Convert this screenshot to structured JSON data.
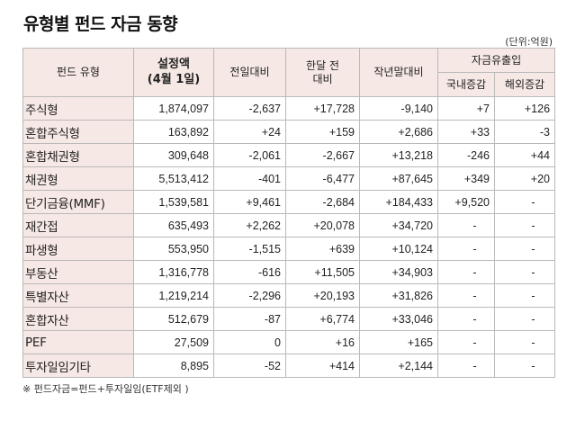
{
  "title": "유형별 펀드 자금 동향",
  "unit": "(단위:억원)",
  "headers": {
    "fund_type": "펀드 유형",
    "setup_amount_line1": "설정액",
    "setup_amount_line2": "(4월 1일)",
    "vs_prev_day": "전일대비",
    "vs_month_ago_line1": "한달 전",
    "vs_month_ago_line2": "대비",
    "vs_last_year_end": "작년말대비",
    "flow_group": "자금유출입",
    "domestic": "국내증감",
    "overseas": "해외증감"
  },
  "rows": [
    {
      "name": "주식형",
      "setup": "1,874,097",
      "prev_day": "-2,637",
      "month": "+17,728",
      "year_end": "-9,140",
      "domestic": "+7",
      "overseas": "+126"
    },
    {
      "name": "혼합주식형",
      "setup": "163,892",
      "prev_day": "+24",
      "month": "+159",
      "year_end": "+2,686",
      "domestic": "+33",
      "overseas": "-3"
    },
    {
      "name": "혼합채권형",
      "setup": "309,648",
      "prev_day": "-2,061",
      "month": "-2,667",
      "year_end": "+13,218",
      "domestic": "-246",
      "overseas": "+44"
    },
    {
      "name": "채권형",
      "setup": "5,513,412",
      "prev_day": "-401",
      "month": "-6,477",
      "year_end": "+87,645",
      "domestic": "+349",
      "overseas": "+20"
    },
    {
      "name": "단기금융(MMF)",
      "setup": "1,539,581",
      "prev_day": "+9,461",
      "month": "-2,684",
      "year_end": "+184,433",
      "domestic": "+9,520",
      "overseas": "-"
    },
    {
      "name": "재간접",
      "setup": "635,493",
      "prev_day": "+2,262",
      "month": "+20,078",
      "year_end": "+34,720",
      "domestic": "-",
      "overseas": "-"
    },
    {
      "name": "파생형",
      "setup": "553,950",
      "prev_day": "-1,515",
      "month": "+639",
      "year_end": "+10,124",
      "domestic": "-",
      "overseas": "-"
    },
    {
      "name": "부동산",
      "setup": "1,316,778",
      "prev_day": "-616",
      "month": "+11,505",
      "year_end": "+34,903",
      "domestic": "-",
      "overseas": "-"
    },
    {
      "name": "특별자산",
      "setup": "1,219,214",
      "prev_day": "-2,296",
      "month": "+20,193",
      "year_end": "+31,826",
      "domestic": "-",
      "overseas": "-"
    },
    {
      "name": "혼합자산",
      "setup": "512,679",
      "prev_day": "-87",
      "month": "+6,774",
      "year_end": "+33,046",
      "domestic": "-",
      "overseas": "-"
    },
    {
      "name": "PEF",
      "setup": "27,509",
      "prev_day": "0",
      "month": "+16",
      "year_end": "+165",
      "domestic": "-",
      "overseas": "-"
    },
    {
      "name": "투자일임기타",
      "setup": "8,895",
      "prev_day": "-52",
      "month": "+414",
      "year_end": "+2,144",
      "domestic": "-",
      "overseas": "-"
    }
  ],
  "footnote": "※ 펀드자금=펀드+투자일임(ETF제외 )"
}
